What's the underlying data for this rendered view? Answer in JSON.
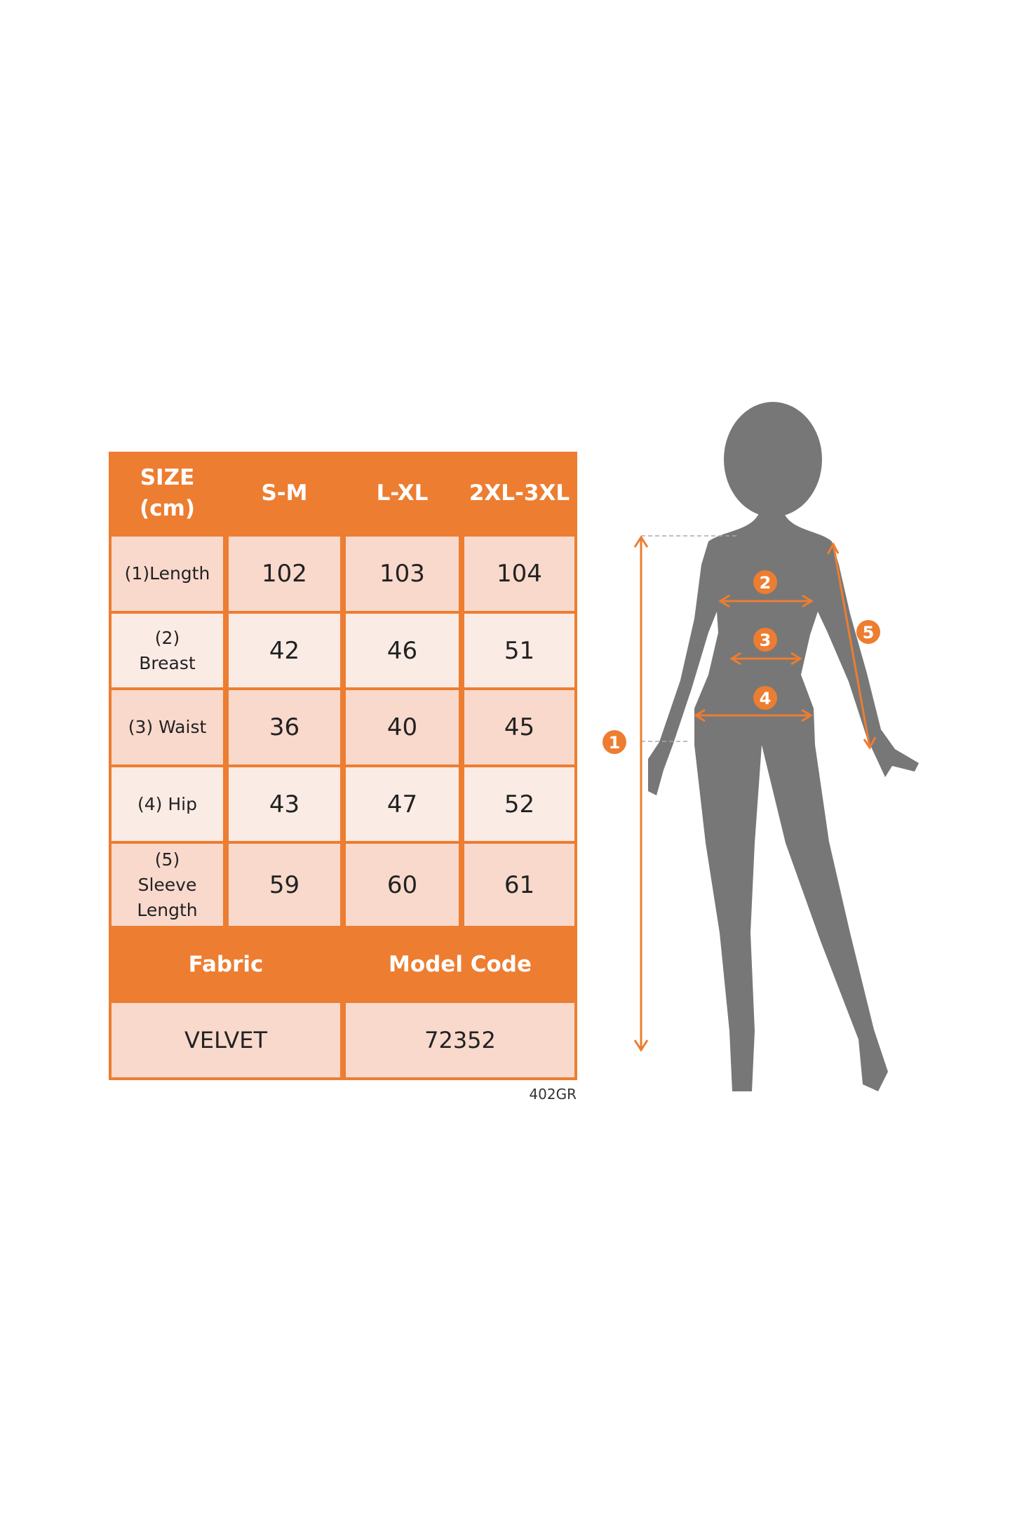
{
  "size_chart": {
    "header": {
      "size_label": "SIZE (cm)",
      "sizes": [
        "S-M",
        "L-XL",
        "2XL-3XL"
      ]
    },
    "rows": [
      {
        "label": "(1)Length",
        "values": [
          "102",
          "103",
          "104"
        ]
      },
      {
        "label": "(2) Breast",
        "values": [
          "42",
          "46",
          "51"
        ]
      },
      {
        "label": "(3) Waist",
        "values": [
          "36",
          "40",
          "45"
        ]
      },
      {
        "label": "(4) Hip",
        "values": [
          "43",
          "47",
          "52"
        ]
      },
      {
        "label": "(5) Sleeve Length",
        "values": [
          "59",
          "60",
          "61"
        ]
      }
    ],
    "fabric_label": "Fabric",
    "fabric_value": "VELVET",
    "model_code_label": "Model Code",
    "model_code_value": "72352",
    "code_note": "402GR"
  },
  "figure": {
    "markers": [
      "1",
      "2",
      "3",
      "4",
      "5"
    ],
    "colors": {
      "accent": "#ED7D31",
      "silhouette": "#777777"
    }
  }
}
